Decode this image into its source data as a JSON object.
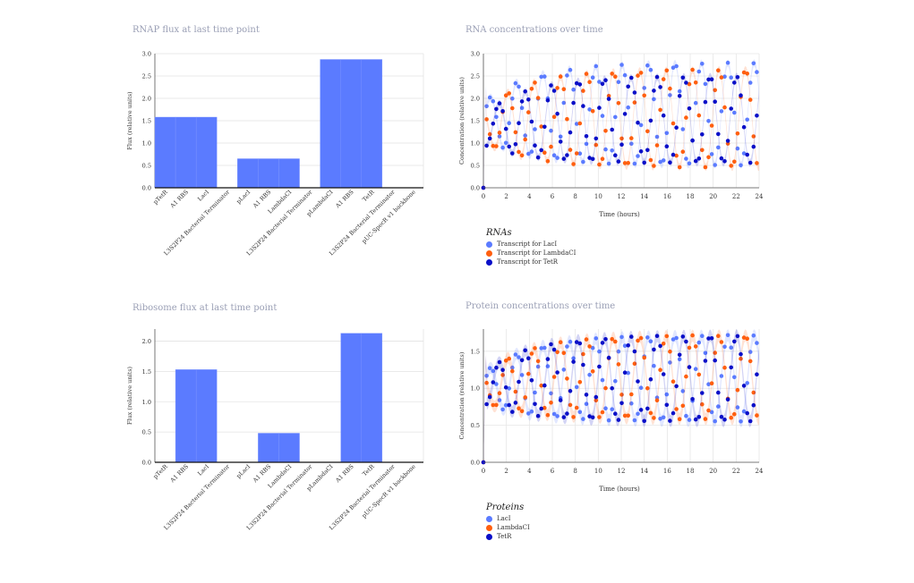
{
  "colors": {
    "bar": "#5b7bff",
    "lacI": "#5b7bff",
    "lambdaCI": "#ff5f0f",
    "tetR": "#0a0fc8"
  },
  "chart_data": [
    {
      "id": "rnap",
      "type": "bar",
      "title": "RNAP flux at last time point",
      "ylabel": "Flux (relative units)",
      "xlabel": "",
      "ylim": [
        0,
        3.0
      ],
      "yticks": [
        "0.0",
        "0.5",
        "1.0",
        "1.5",
        "2.0",
        "2.5",
        "3.0"
      ],
      "categories": [
        "pTetR",
        "A1 RBS",
        "LacI",
        "L3S2P24 Bacterial Terminator",
        "pLacI",
        "A1 RBS",
        "LambdaCI",
        "L3S2P24 Bacterial Terminator",
        "pLambdaCI",
        "A1 RBS",
        "TetR",
        "L3S2P24 Bacterial Terminator",
        "pUC-SpecR v1 backbone"
      ],
      "values": [
        1.58,
        1.58,
        1.58,
        0,
        0.65,
        0.65,
        0.65,
        0,
        2.87,
        2.87,
        2.87,
        0,
        0
      ],
      "grid": true
    },
    {
      "id": "rna",
      "type": "scatter",
      "title": "RNA concentrations over time",
      "ylabel": "Concentration (relative units)",
      "xlabel": "Time (hours)",
      "xlim": [
        0,
        24
      ],
      "ylim": [
        0,
        3.0
      ],
      "xticks": [
        "0",
        "2",
        "4",
        "6",
        "8",
        "10",
        "12",
        "14",
        "16",
        "18",
        "20",
        "22",
        "24"
      ],
      "yticks": [
        "0.0",
        "0.5",
        "1.0",
        "1.5",
        "2.0",
        "2.5",
        "3.0"
      ],
      "legend_title": "RNAs",
      "series": [
        {
          "name": "Transcript for LacI",
          "color": "#5b7bff",
          "peak": 2.8,
          "trough": 0.5,
          "start": 1.5,
          "phase": 0.0
        },
        {
          "name": "Transcript for LambdaCI",
          "color": "#ff5f0f",
          "peak": 2.65,
          "trough": 0.45,
          "start": 1.4,
          "phase": 2.094
        },
        {
          "name": "Transcript for TetR",
          "color": "#0a0fc8",
          "peak": 2.5,
          "trough": 0.55,
          "start": 1.3,
          "phase": 4.189
        }
      ],
      "period_hours": 2.3,
      "grid": true
    },
    {
      "id": "ribo",
      "type": "bar",
      "title": "Ribosome flux at last time point",
      "ylabel": "Flux (relative units)",
      "xlabel": "",
      "ylim": [
        0,
        2.2
      ],
      "yticks": [
        "0.0",
        "0.5",
        "1.0",
        "1.5",
        "2.0"
      ],
      "categories": [
        "pTetR",
        "A1 RBS",
        "LacI",
        "L3S2P24 Bacterial Terminator",
        "pLacI",
        "A1 RBS",
        "LambdaCI",
        "L3S2P24 Bacterial Terminator",
        "pLambdaCI",
        "A1 RBS",
        "TetR",
        "L3S2P24 Bacterial Terminator",
        "pUC-SpecR v1 backbone"
      ],
      "values": [
        0,
        1.53,
        1.53,
        0,
        0,
        0.48,
        0.48,
        0,
        0,
        2.13,
        2.13,
        0,
        0
      ],
      "grid": true
    },
    {
      "id": "protein",
      "type": "scatter",
      "title": "Protein concentrations over time",
      "ylabel": "Concentration (relative units)",
      "xlabel": "Time (hours)",
      "xlim": [
        0,
        24
      ],
      "ylim": [
        0,
        1.8
      ],
      "xticks": [
        "0",
        "2",
        "4",
        "6",
        "8",
        "10",
        "12",
        "14",
        "16",
        "18",
        "20",
        "22",
        "24"
      ],
      "yticks": [
        "0.0",
        "0.5",
        "1.0",
        "1.5"
      ],
      "legend_title": "Proteins",
      "series": [
        {
          "name": "LacI",
          "color": "#5b7bff",
          "peak": 1.72,
          "trough": 0.55,
          "start": 1.0,
          "phase": 0.0
        },
        {
          "name": "LambdaCI",
          "color": "#ff5f0f",
          "peak": 1.72,
          "trough": 0.58,
          "start": 1.0,
          "phase": 2.094
        },
        {
          "name": "TetR",
          "color": "#0a0fc8",
          "peak": 1.72,
          "trough": 0.55,
          "start": 1.0,
          "phase": 4.189
        }
      ],
      "period_hours": 2.3,
      "grid": true
    }
  ]
}
